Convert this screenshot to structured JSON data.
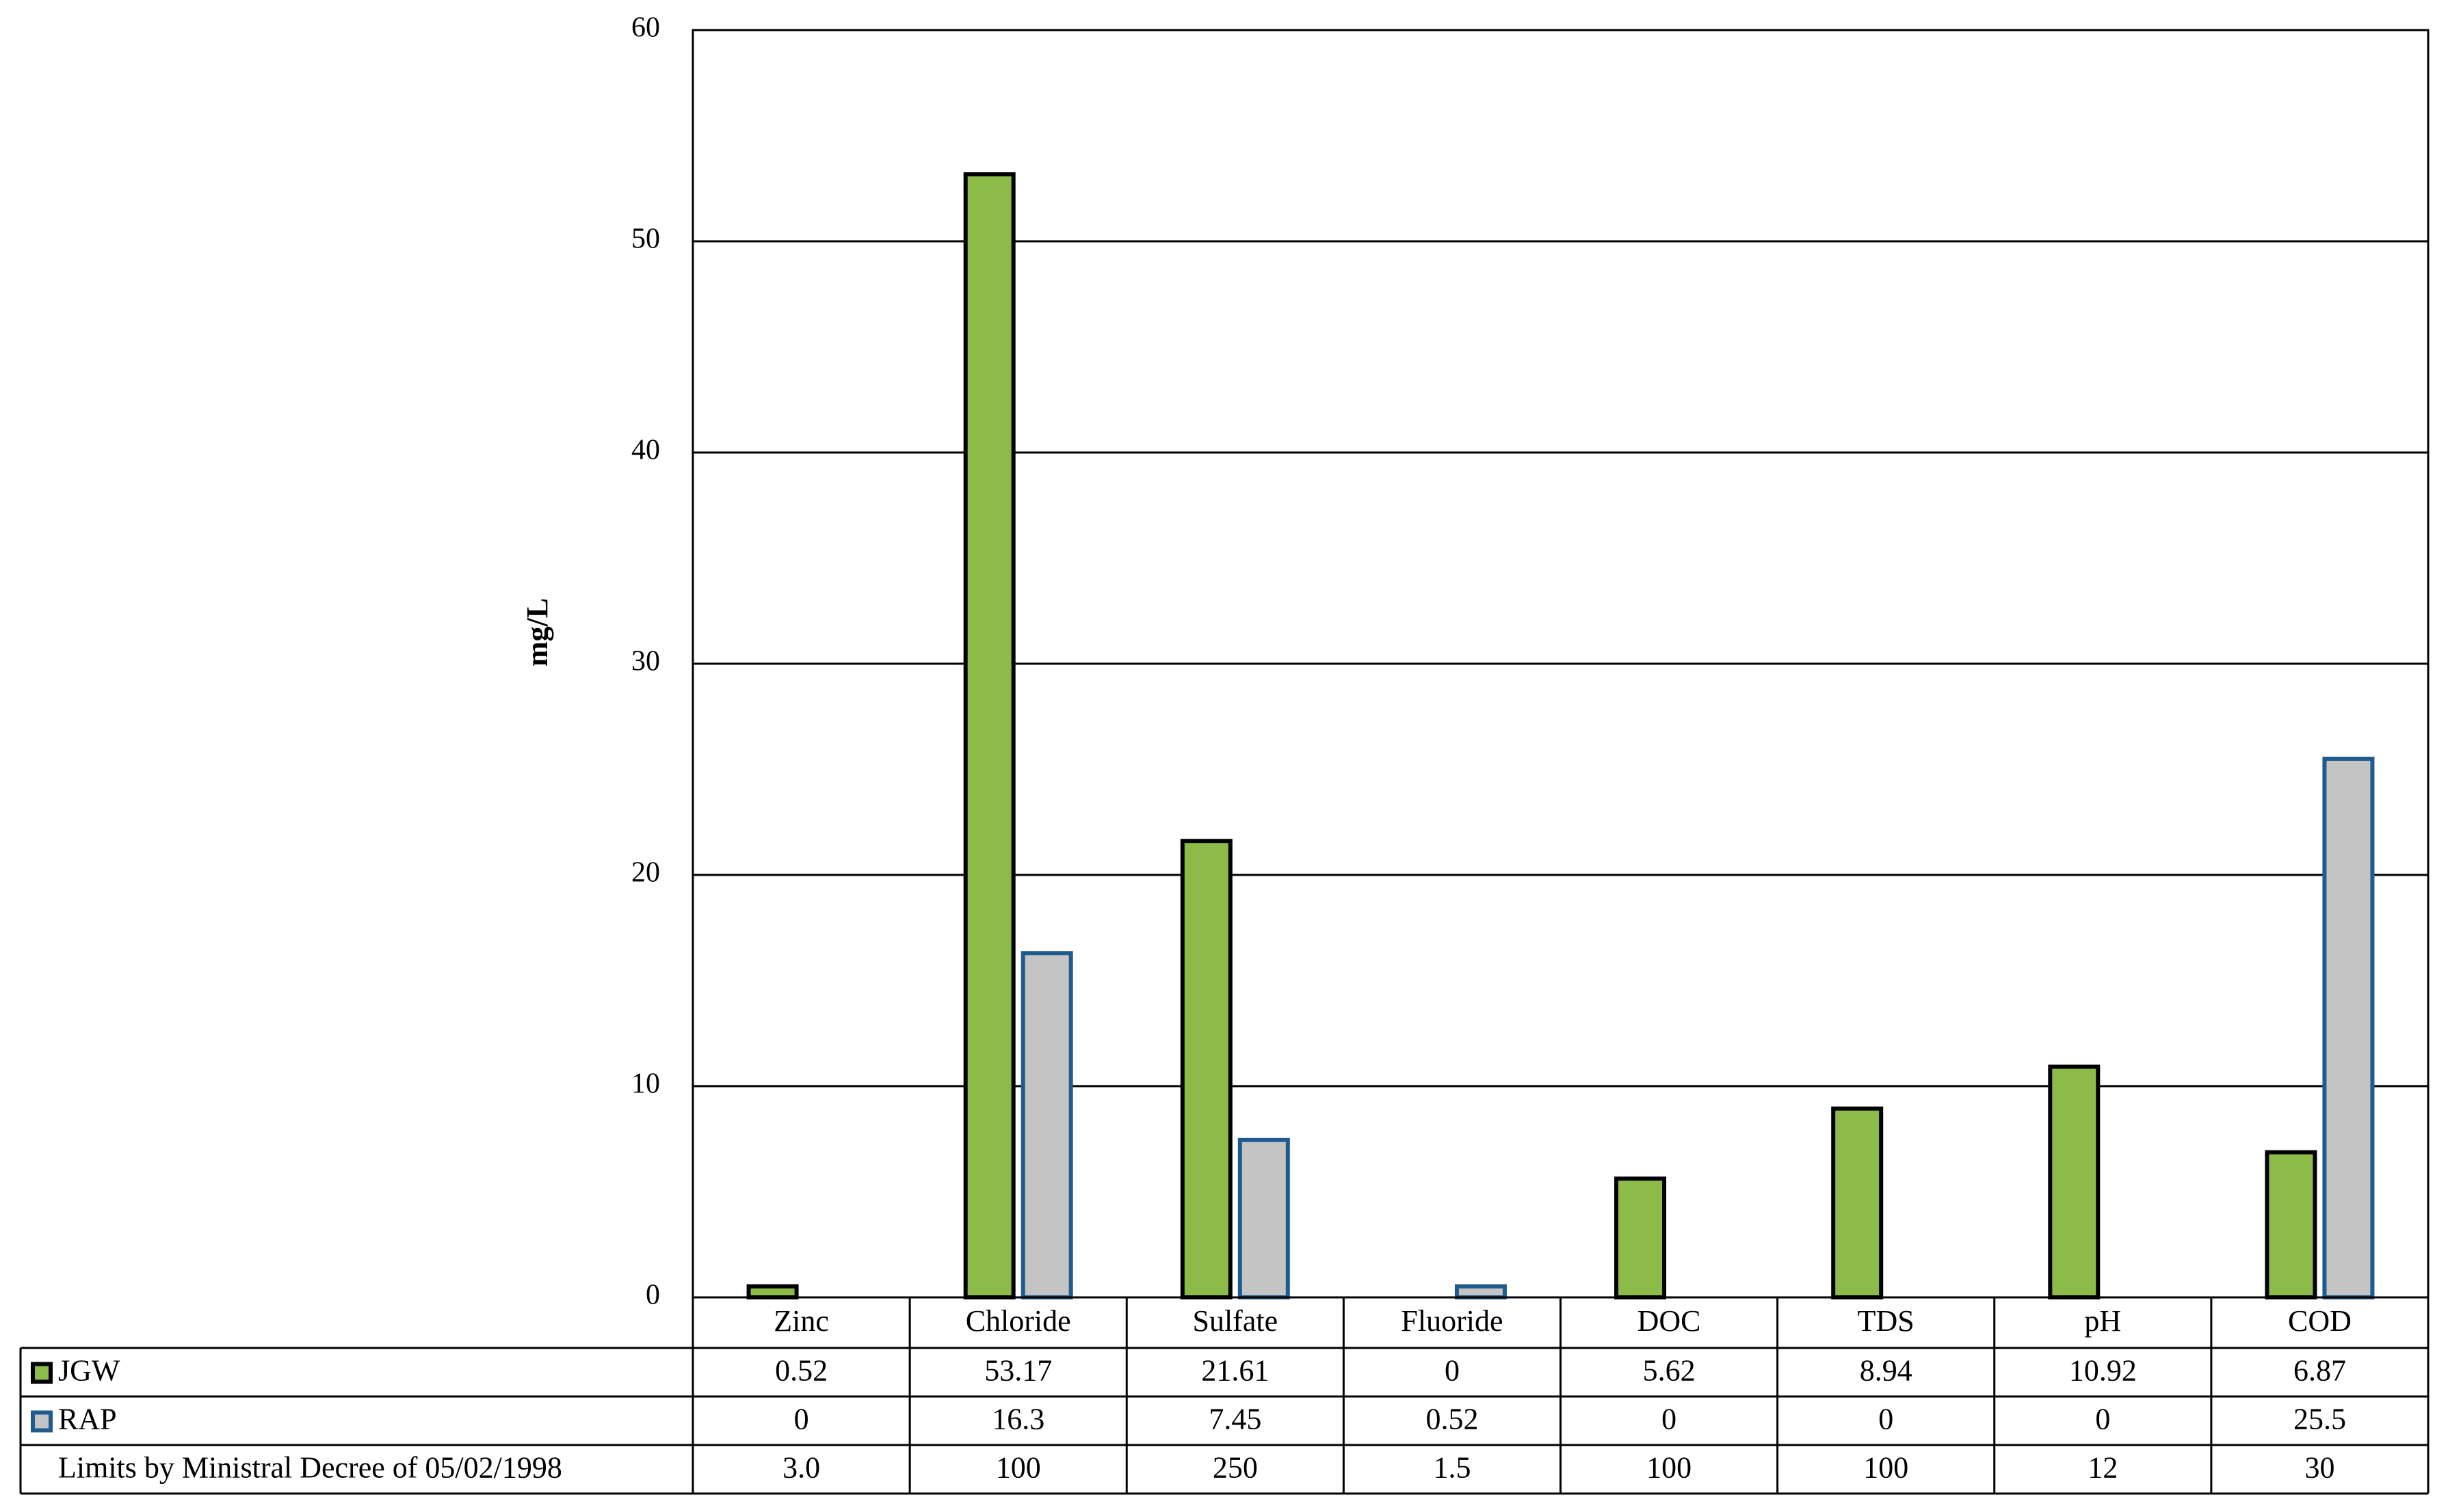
{
  "chart_data": {
    "type": "bar",
    "ylabel": "mg/L",
    "ylim": [
      0,
      60
    ],
    "yticks": [
      0,
      10,
      20,
      30,
      40,
      50,
      60
    ],
    "grid": true,
    "categories": [
      "Zinc",
      "Chloride",
      "Sulfate",
      "Fluoride",
      "DOC",
      "TDS",
      "pH",
      "COD"
    ],
    "series": [
      {
        "name": "JGW",
        "values": [
          0.52,
          53.17,
          21.61,
          0,
          5.62,
          8.94,
          10.92,
          6.87
        ],
        "fill": "#8DBB4A",
        "stroke": "#000000"
      },
      {
        "name": "RAP",
        "values": [
          0,
          16.3,
          7.45,
          0.52,
          0,
          0,
          0,
          25.5
        ],
        "fill": "#C4C4C4",
        "stroke": "#1F5B8E"
      }
    ],
    "table": {
      "rows": [
        {
          "label": "JGW",
          "legend_series": 0,
          "cells": [
            "0.52",
            "53.17",
            "21.61",
            "0",
            "5.62",
            "8.94",
            "10.92",
            "6.87"
          ]
        },
        {
          "label": "RAP",
          "legend_series": 1,
          "cells": [
            "0",
            "16.3",
            "7.45",
            "0.52",
            "0",
            "0",
            "0",
            "25.5"
          ]
        },
        {
          "label": "Limits by Ministral Decree of 05/02/1998",
          "legend_series": null,
          "cells": [
            "3.0",
            "100",
            "250",
            "1.5",
            "100",
            "100",
            "12",
            "30"
          ]
        }
      ]
    }
  }
}
